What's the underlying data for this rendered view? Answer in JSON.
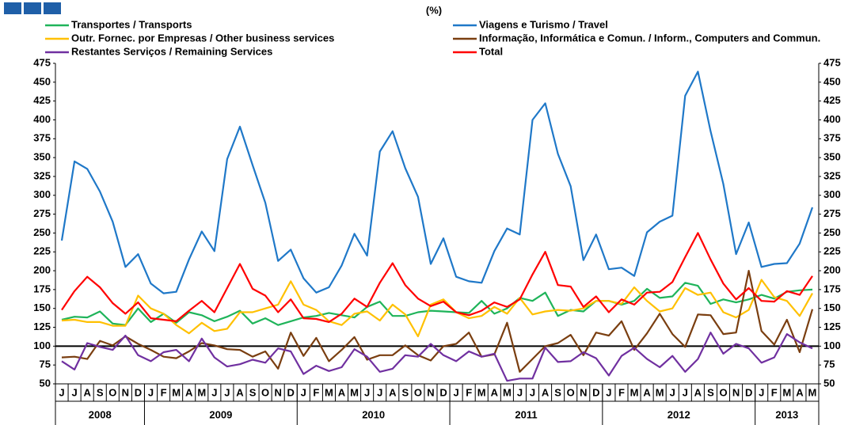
{
  "chart_data": {
    "type": "line",
    "title": "(%)",
    "years": [
      {
        "label": "2008",
        "months": [
          "J",
          "J",
          "A",
          "S",
          "O",
          "N",
          "D"
        ]
      },
      {
        "label": "2009",
        "months": [
          "J",
          "F",
          "M",
          "A",
          "M",
          "J",
          "J",
          "A",
          "S",
          "O",
          "N",
          "D"
        ]
      },
      {
        "label": "2010",
        "months": [
          "J",
          "F",
          "M",
          "A",
          "M",
          "J",
          "J",
          "A",
          "S",
          "O",
          "N",
          "D"
        ]
      },
      {
        "label": "2011",
        "months": [
          "J",
          "F",
          "M",
          "A",
          "M",
          "J",
          "J",
          "A",
          "S",
          "O",
          "N",
          "D"
        ]
      },
      {
        "label": "2012",
        "months": [
          "J",
          "F",
          "M",
          "A",
          "M",
          "J",
          "J",
          "A",
          "S",
          "O",
          "N",
          "D"
        ]
      },
      {
        "label": "2013",
        "months": [
          "J",
          "F",
          "M",
          "A",
          "M"
        ]
      }
    ],
    "series": [
      {
        "name": "Transportes / Transports",
        "color": "#1fb45a",
        "values": [
          135,
          139,
          138,
          146,
          130,
          128,
          150,
          132,
          143,
          131,
          145,
          141,
          133,
          139,
          147,
          130,
          137,
          128,
          133,
          138,
          140,
          144,
          141,
          138,
          152,
          159,
          140,
          140,
          145,
          147,
          146,
          145,
          144,
          160,
          143,
          150,
          164,
          160,
          171,
          140,
          148,
          146,
          160,
          160,
          155,
          160,
          176,
          164,
          166,
          184,
          180,
          156,
          162,
          158,
          162,
          168,
          163,
          172,
          174,
          175
        ]
      },
      {
        "name": "Viagens e Turismo / Travel",
        "color": "#1f78c8",
        "values": [
          240,
          345,
          335,
          305,
          265,
          205,
          222,
          183,
          170,
          172,
          215,
          252,
          226,
          348,
          391,
          340,
          290,
          213,
          228,
          190,
          171,
          178,
          207,
          249,
          220,
          358,
          385,
          336,
          298,
          209,
          243,
          192,
          186,
          184,
          226,
          256,
          248,
          400,
          422,
          355,
          312,
          214,
          248,
          202,
          204,
          193,
          251,
          265,
          273,
          432,
          464,
          385,
          315,
          222,
          264,
          205,
          209,
          210,
          236,
          284
        ]
      },
      {
        "name": "Outr. Fornec. por Empresas  / Other business services",
        "color": "#ffc000",
        "values": [
          134,
          135,
          132,
          132,
          127,
          127,
          167,
          150,
          143,
          128,
          117,
          131,
          120,
          123,
          145,
          145,
          150,
          155,
          186,
          155,
          148,
          133,
          128,
          143,
          146,
          134,
          155,
          142,
          113,
          155,
          162,
          145,
          137,
          140,
          152,
          143,
          164,
          142,
          146,
          148,
          147,
          150,
          160,
          160,
          156,
          178,
          160,
          146,
          150,
          177,
          168,
          171,
          145,
          138,
          148,
          188,
          165,
          160,
          140,
          170
        ]
      },
      {
        "name": "Informação, Informática e Comun. /  Inform., Computers and Commun.",
        "color": "#7a3e10",
        "values": [
          85,
          86,
          83,
          107,
          101,
          113,
          103,
          95,
          86,
          84,
          93,
          104,
          101,
          96,
          95,
          86,
          93,
          70,
          118,
          87,
          111,
          80,
          95,
          112,
          82,
          88,
          88,
          101,
          88,
          81,
          100,
          103,
          118,
          86,
          89,
          131,
          66,
          83,
          100,
          104,
          115,
          88,
          118,
          114,
          133,
          95,
          117,
          143,
          116,
          99,
          142,
          141,
          116,
          118,
          200,
          120,
          102,
          135,
          92,
          149
        ]
      },
      {
        "name": "Restantes Serviços / Remaining Services",
        "color": "#7030a0",
        "values": [
          80,
          69,
          104,
          99,
          95,
          114,
          88,
          80,
          92,
          95,
          80,
          110,
          85,
          73,
          76,
          82,
          78,
          97,
          93,
          63,
          74,
          67,
          72,
          96,
          86,
          66,
          70,
          88,
          86,
          103,
          88,
          80,
          93,
          86,
          90,
          54,
          57,
          57,
          98,
          79,
          80,
          92,
          84,
          61,
          87,
          98,
          83,
          72,
          87,
          66,
          83,
          118,
          90,
          103,
          97,
          78,
          85,
          116,
          105,
          97
        ]
      },
      {
        "name": "Total",
        "color": "#ff0000",
        "values": [
          148,
          173,
          192,
          178,
          157,
          143,
          158,
          137,
          135,
          133,
          147,
          160,
          145,
          177,
          209,
          176,
          167,
          145,
          162,
          137,
          136,
          132,
          143,
          163,
          152,
          184,
          210,
          181,
          163,
          153,
          159,
          145,
          141,
          147,
          158,
          152,
          162,
          195,
          225,
          181,
          179,
          152,
          166,
          145,
          162,
          155,
          171,
          172,
          185,
          218,
          250,
          215,
          183,
          162,
          177,
          160,
          159,
          173,
          168,
          193
        ]
      }
    ],
    "reference_line": 100,
    "ylim": [
      50,
      475
    ],
    "yticks": [
      50,
      75,
      100,
      125,
      150,
      175,
      200,
      225,
      250,
      275,
      300,
      325,
      350,
      375,
      400,
      425,
      450,
      475
    ]
  }
}
